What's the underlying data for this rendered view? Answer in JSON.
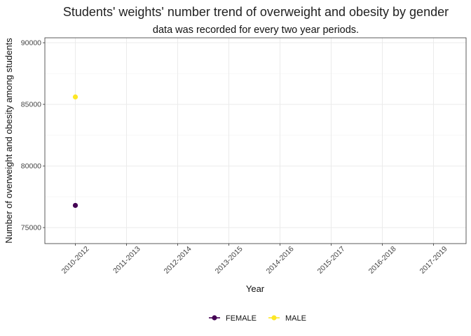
{
  "chart_data": {
    "type": "scatter",
    "title": "Students' weights' number trend of overweight and obesity by gender",
    "subtitle": "data was recorded for every two year periods.",
    "xlabel": "Year",
    "ylabel": "Number of overweight and obesity among students",
    "categories": [
      "2010-2012",
      "2011-2013",
      "2012-2014",
      "2013-2015",
      "2014-2016",
      "2015-2017",
      "2016-2018",
      "2017-2019"
    ],
    "yticks": [
      75000,
      80000,
      85000,
      90000
    ],
    "ylim": [
      73700,
      90400
    ],
    "grid": true,
    "legend_position": "bottom",
    "series": [
      {
        "name": "FEMALE",
        "color": "#440154",
        "points": [
          {
            "x": "2010-2012",
            "y": 76800
          }
        ]
      },
      {
        "name": "MALE",
        "color": "#fde725",
        "points": [
          {
            "x": "2010-2012",
            "y": 85600
          }
        ]
      }
    ]
  }
}
